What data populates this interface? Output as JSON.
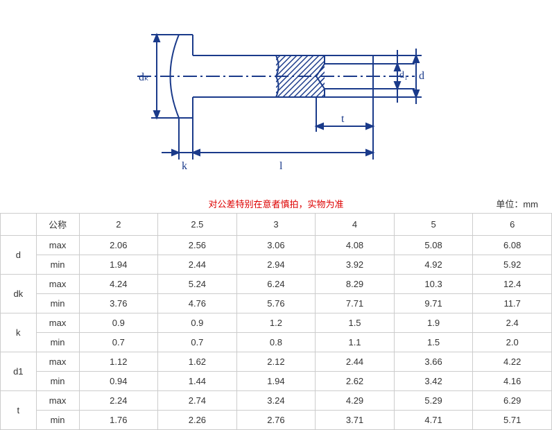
{
  "diagram": {
    "stroke": "#1a3a8a",
    "stroke_width": 2,
    "hatch_color": "#1a3a8a",
    "labels": {
      "dk": "dₖ",
      "k": "k",
      "l": "l",
      "t": "t",
      "d1": "d₁",
      "d": "d"
    },
    "label_fontsize": 16,
    "label_color": "#1a3a8a"
  },
  "warning": "对公差特别在意者慎拍，实物为准",
  "unit_label": "单位：mm",
  "table": {
    "header": {
      "nominal": "公称",
      "sizes": [
        "2",
        "2.5",
        "3",
        "4",
        "5",
        "6"
      ]
    },
    "rows": [
      {
        "param": "d",
        "sub": [
          {
            "label": "max",
            "vals": [
              "2.06",
              "2.56",
              "3.06",
              "4.08",
              "5.08",
              "6.08"
            ]
          },
          {
            "label": "min",
            "vals": [
              "1.94",
              "2.44",
              "2.94",
              "3.92",
              "4.92",
              "5.92"
            ]
          }
        ]
      },
      {
        "param": "dk",
        "sub": [
          {
            "label": "max",
            "vals": [
              "4.24",
              "5.24",
              "6.24",
              "8.29",
              "10.3",
              "12.4"
            ]
          },
          {
            "label": "min",
            "vals": [
              "3.76",
              "4.76",
              "5.76",
              "7.71",
              "9.71",
              "11.7"
            ]
          }
        ]
      },
      {
        "param": "k",
        "sub": [
          {
            "label": "max",
            "vals": [
              "0.9",
              "0.9",
              "1.2",
              "1.5",
              "1.9",
              "2.4"
            ]
          },
          {
            "label": "min",
            "vals": [
              "0.7",
              "0.7",
              "0.8",
              "1.1",
              "1.5",
              "2.0"
            ]
          }
        ]
      },
      {
        "param": "d1",
        "sub": [
          {
            "label": "max",
            "vals": [
              "1.12",
              "1.62",
              "2.12",
              "2.44",
              "3.66",
              "4.22"
            ]
          },
          {
            "label": "min",
            "vals": [
              "0.94",
              "1.44",
              "1.94",
              "2.62",
              "3.42",
              "4.16"
            ]
          }
        ]
      },
      {
        "param": "t",
        "sub": [
          {
            "label": "max",
            "vals": [
              "2.24",
              "2.74",
              "3.24",
              "4.29",
              "5.29",
              "6.29"
            ]
          },
          {
            "label": "min",
            "vals": [
              "1.76",
              "2.26",
              "2.76",
              "3.71",
              "4.71",
              "5.71"
            ]
          }
        ]
      }
    ]
  }
}
